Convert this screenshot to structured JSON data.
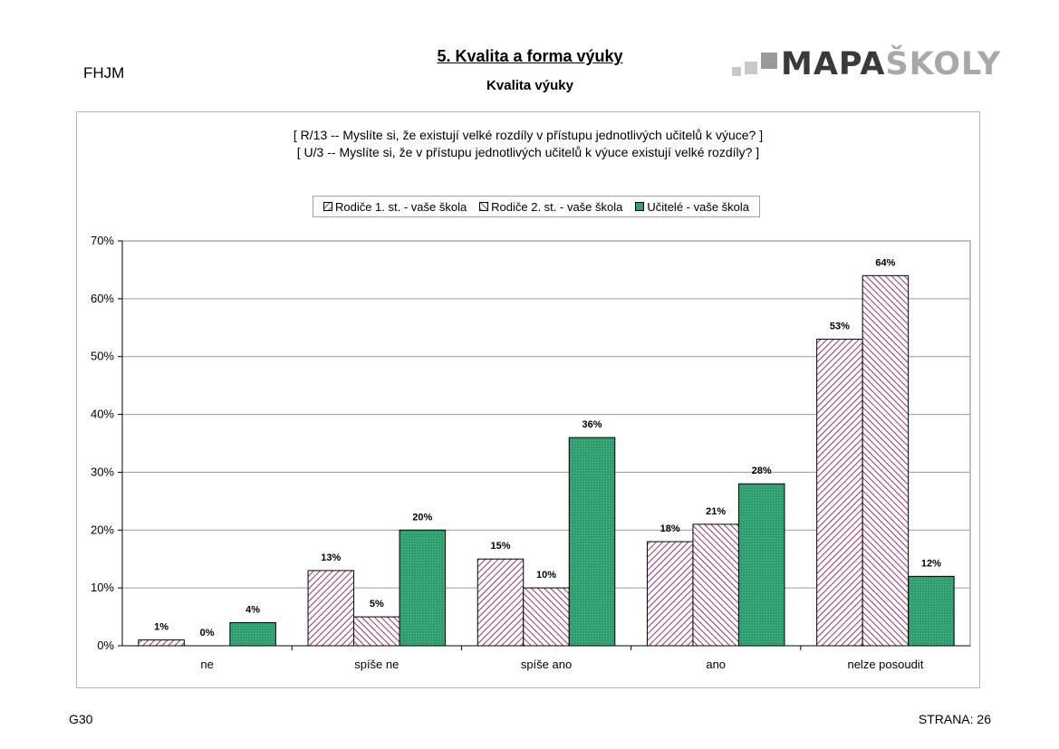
{
  "header": {
    "code": "FHJM",
    "title": "5. Kvalita a forma výuky",
    "subtitle": "Kvalita výuky",
    "logo_dark": "MAPA",
    "logo_light": "ŠKOLY"
  },
  "footer": {
    "left": "G30",
    "right": "STRANA: 26"
  },
  "colors": {
    "series1": "#a03070",
    "series2": "#a03070",
    "series3": "#2e9e6e",
    "grid": "#9a9a9a"
  },
  "chart_data": {
    "type": "bar",
    "questions": [
      "[ R/13 -- Myslíte si, že existují velké rozdíly v přístupu jednotlivých učitelů k výuce? ]",
      "[ U/3 -- Myslíte si, že v přístupu jednotlivých učitelů k výuce existují velké rozdíly? ]"
    ],
    "categories": [
      "ne",
      "spíše ne",
      "spíše ano",
      "ano",
      "nelze posoudit"
    ],
    "series": [
      {
        "name": "Rodiče 1. st. - vaše škola",
        "values": [
          1,
          13,
          15,
          18,
          53
        ],
        "labels": [
          "1%",
          "13%",
          "15%",
          "18%",
          "53%"
        ]
      },
      {
        "name": "Rodiče 2. st. - vaše škola",
        "values": [
          0,
          5,
          10,
          21,
          64
        ],
        "labels": [
          "0%",
          "5%",
          "10%",
          "21%",
          "64%"
        ]
      },
      {
        "name": "Učitelé - vaše škola",
        "values": [
          4,
          20,
          36,
          28,
          12
        ],
        "labels": [
          "4%",
          "20%",
          "36%",
          "28%",
          "12%"
        ]
      }
    ],
    "y_ticks": [
      "0%",
      "10%",
      "20%",
      "30%",
      "40%",
      "50%",
      "60%",
      "70%"
    ],
    "ylim": [
      0,
      70
    ],
    "grid": true,
    "legend_position": "top"
  }
}
